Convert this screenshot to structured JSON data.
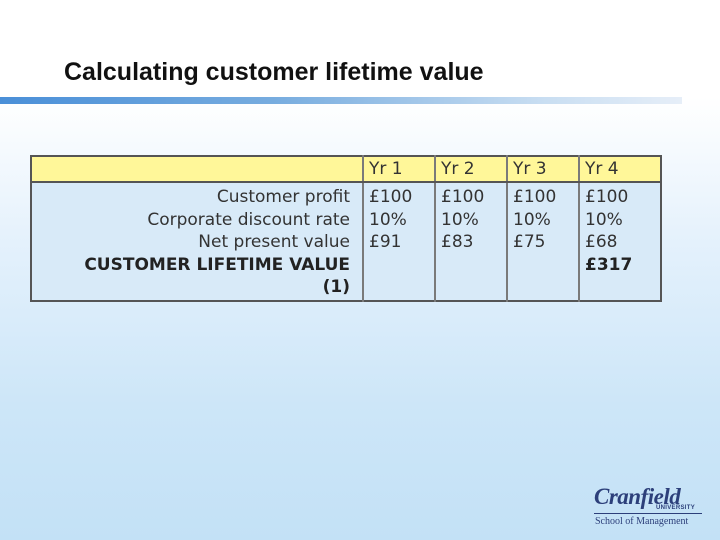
{
  "slide": {
    "title": "Calculating customer lifetime value"
  },
  "table": {
    "headers": [
      "",
      "Yr 1",
      "Yr 2",
      "Yr 3",
      "Yr 4"
    ],
    "row_labels": {
      "profit": "Customer profit",
      "discount": "Corporate discount rate",
      "npv": "Net present value",
      "clv_line1": "CUSTOMER LIFETIME VALUE",
      "clv_line2": "(1)"
    },
    "years": [
      {
        "profit": "£100",
        "discount": "10%",
        "npv": "£91",
        "clv": ""
      },
      {
        "profit": "£100",
        "discount": "10%",
        "npv": "£83",
        "clv": ""
      },
      {
        "profit": "£100",
        "discount": "10%",
        "npv": "£75",
        "clv": ""
      },
      {
        "profit": "£100",
        "discount": "10%",
        "npv": "£68",
        "clv": "£317"
      }
    ]
  },
  "logo": {
    "name": "Cranfield",
    "sub": "UNIVERSITY",
    "school": "School of Management"
  }
}
